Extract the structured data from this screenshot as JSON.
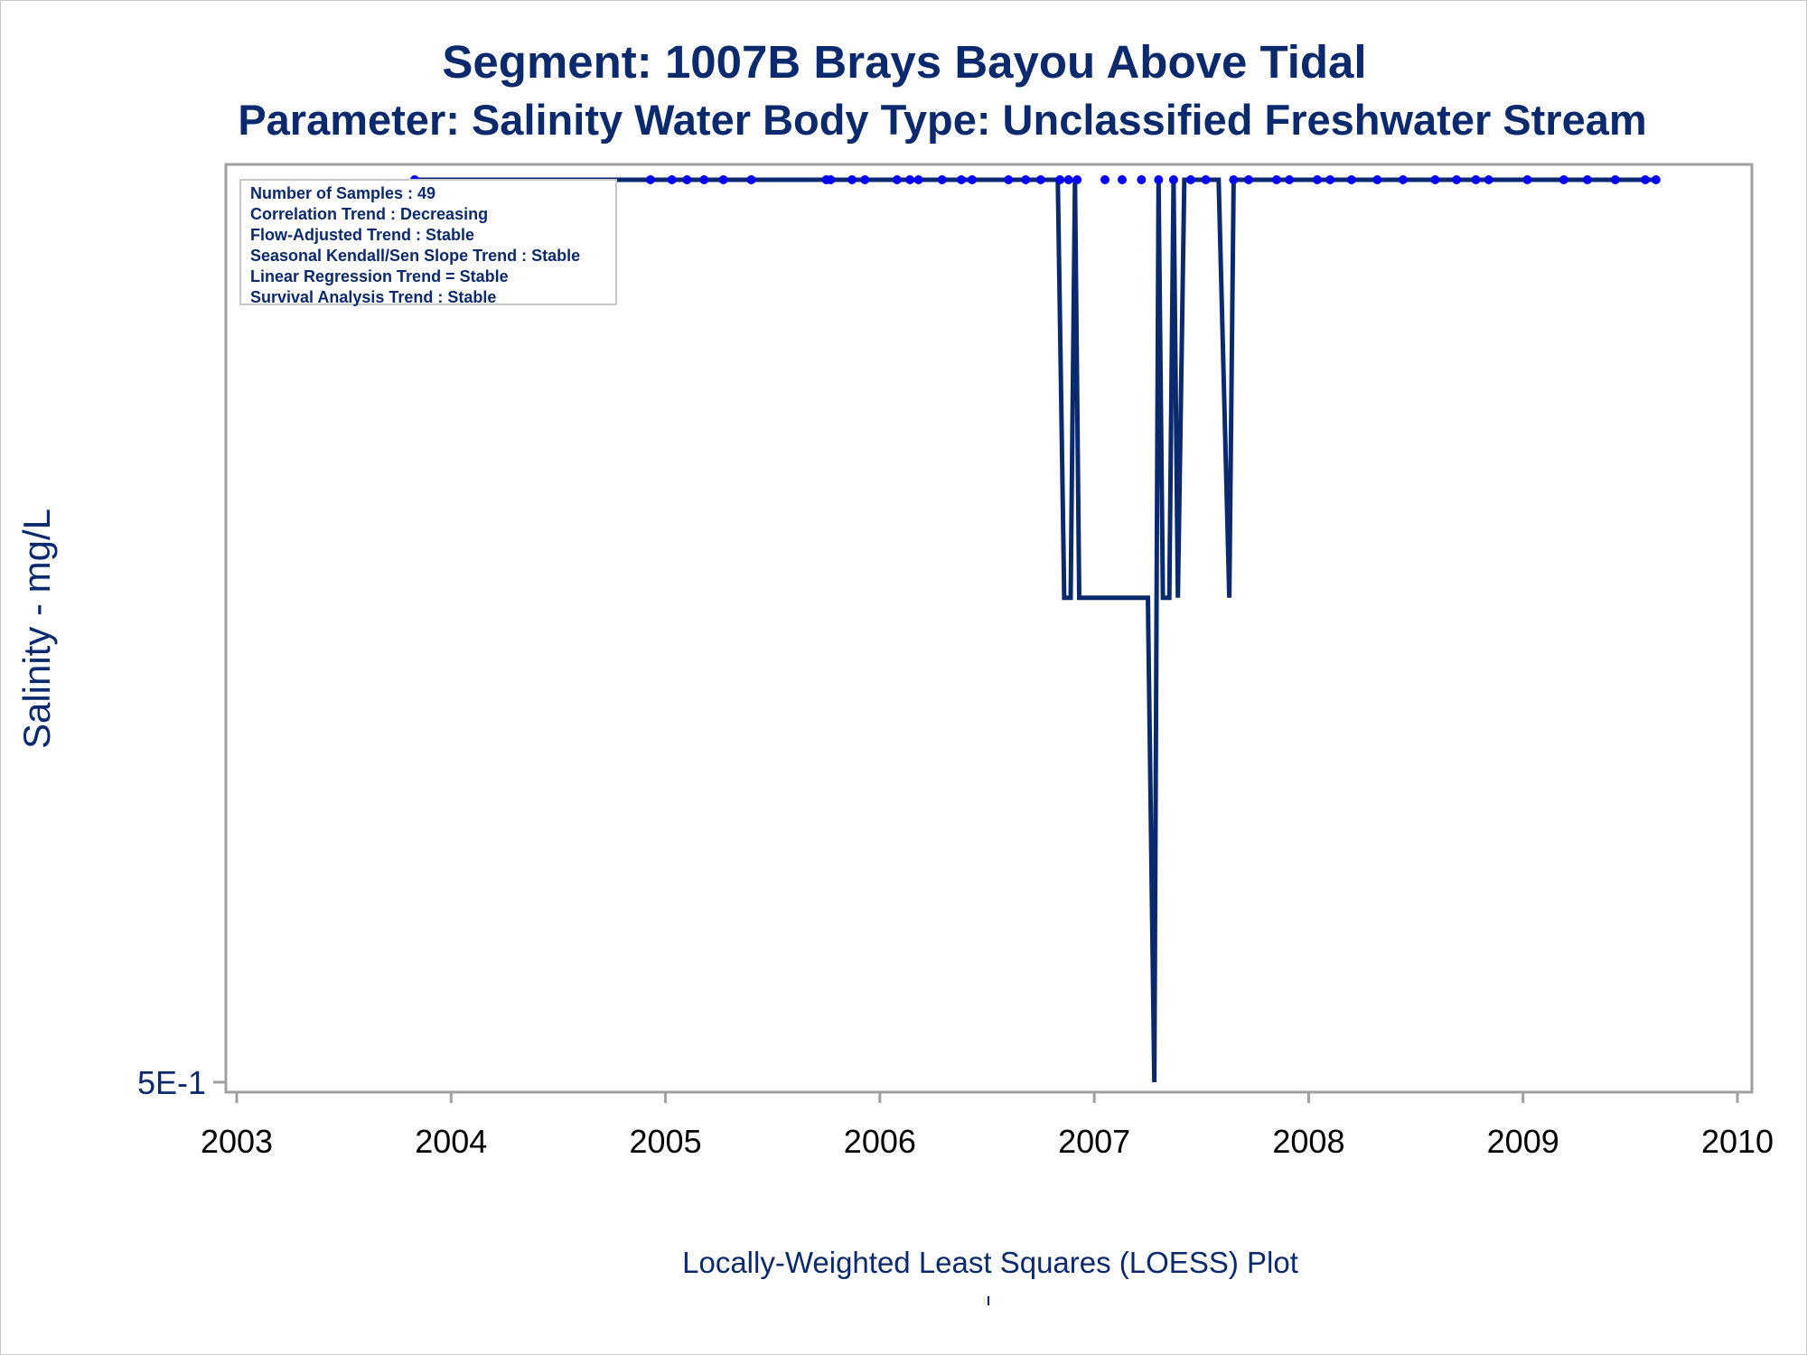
{
  "titles": {
    "line1": "Segment: 1007B  Brays Bayou Above Tidal",
    "line2": "Parameter: Salinity   Water Body Type: Unclassified Freshwater Stream"
  },
  "footnote": "Locally-Weighted Least Squares (LOESS) Plot",
  "stats": [
    "Number of Samples : 49",
    "Correlation Trend : Decreasing",
    "Flow-Adjusted Trend : Stable",
    "Seasonal Kendall/Sen Slope Trend : Stable",
    "Linear Regression Trend = Stable",
    "Survival Analysis Trend : Stable"
  ],
  "colors": {
    "line": "#0b2a6e",
    "points": "#0000ff",
    "frame": "#a0a0a0",
    "text": "#0b2a6e"
  },
  "chart_data": {
    "type": "line",
    "title": "Segment: 1007B  Brays Bayou Above Tidal",
    "subtitle": "Parameter: Salinity   Water Body Type: Unclassified Freshwater Stream",
    "xlabel": "",
    "ylabel": "Salinity - mg/L",
    "x_ticks": [
      "2003",
      "2004",
      "2005",
      "2006",
      "2007",
      "2008",
      "2009",
      "2010"
    ],
    "y_ticks": [
      "5E-1"
    ],
    "xlim": [
      2003,
      2010
    ],
    "y_scale": "log",
    "ylim": [
      0.5,
      1.2
    ],
    "grid": false,
    "legend": "none",
    "loess_line": {
      "x": [
        2003.83,
        2006.83,
        2006.86,
        2006.89,
        2006.91,
        2006.93,
        2007.25,
        2007.28,
        2007.3,
        2007.32,
        2007.35,
        2007.37,
        2007.39,
        2007.42,
        2007.44,
        2007.46,
        2007.58,
        2007.63,
        2007.65,
        2009.63
      ],
      "y": [
        1.2,
        1.2,
        0.8,
        0.8,
        1.2,
        0.8,
        0.8,
        0.5,
        1.2,
        0.8,
        0.8,
        1.2,
        0.8,
        1.2,
        1.2,
        1.2,
        1.2,
        0.8,
        1.2,
        1.2
      ]
    },
    "observations": {
      "x": [
        2003.83,
        2004.93,
        2005.03,
        2005.1,
        2005.18,
        2005.27,
        2005.4,
        2005.75,
        2005.77,
        2005.87,
        2005.93,
        2006.08,
        2006.14,
        2006.18,
        2006.29,
        2006.38,
        2006.43,
        2006.6,
        2006.68,
        2006.75,
        2006.84,
        2006.88,
        2006.92,
        2007.05,
        2007.13,
        2007.22,
        2007.3,
        2007.37,
        2007.45,
        2007.52,
        2007.65,
        2007.72,
        2007.85,
        2007.91,
        2008.04,
        2008.1,
        2008.2,
        2008.32,
        2008.44,
        2008.59,
        2008.69,
        2008.78,
        2008.84,
        2009.02,
        2009.19,
        2009.3,
        2009.43,
        2009.57,
        2009.62
      ],
      "y": [
        1.2,
        1.2,
        1.2,
        1.2,
        1.2,
        1.2,
        1.2,
        1.2,
        1.2,
        1.2,
        1.2,
        1.2,
        1.2,
        1.2,
        1.2,
        1.2,
        1.2,
        1.2,
        1.2,
        1.2,
        1.2,
        1.2,
        1.2,
        1.2,
        1.2,
        1.2,
        1.2,
        1.2,
        1.2,
        1.2,
        1.2,
        1.2,
        1.2,
        1.2,
        1.2,
        1.2,
        1.2,
        1.2,
        1.2,
        1.2,
        1.2,
        1.2,
        1.2,
        1.2,
        1.2,
        1.2,
        1.2,
        1.2,
        1.2
      ]
    }
  }
}
